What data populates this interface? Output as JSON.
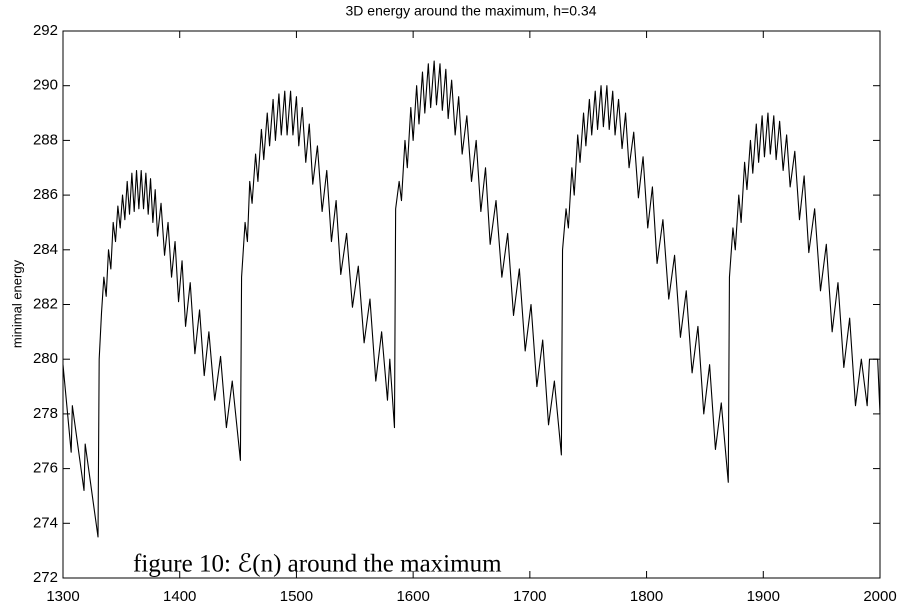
{
  "chart_data": {
    "type": "line",
    "title": "3D energy around the maximum, h=0.34",
    "ylabel": "minimal energy",
    "annotation": "figure 10: ℰ(n) around the maximum",
    "xlim": [
      1300,
      2000
    ],
    "xticks": [
      1300,
      1400,
      1500,
      1600,
      1700,
      1800,
      1900,
      2000
    ],
    "ylim": [
      272,
      292
    ],
    "yticks": [
      272,
      274,
      276,
      278,
      280,
      282,
      284,
      286,
      288,
      290,
      292
    ],
    "grid": false,
    "color": "#000000",
    "x": [
      1300,
      1307,
      1308,
      1318,
      1319,
      1330,
      1331,
      1333,
      1335,
      1337,
      1339,
      1341,
      1343,
      1345,
      1347,
      1349,
      1351,
      1353,
      1355,
      1357,
      1359,
      1361,
      1363,
      1365,
      1367,
      1369,
      1371,
      1373,
      1375,
      1377,
      1379,
      1381,
      1384,
      1387,
      1390,
      1393,
      1396,
      1399,
      1402,
      1405,
      1409,
      1413,
      1417,
      1421,
      1425,
      1430,
      1435,
      1440,
      1445,
      1452,
      1453,
      1456,
      1458,
      1460,
      1462,
      1465,
      1467,
      1470,
      1472,
      1475,
      1477,
      1480,
      1482,
      1485,
      1487,
      1490,
      1492,
      1495,
      1497,
      1500,
      1502,
      1505,
      1508,
      1511,
      1514,
      1518,
      1522,
      1526,
      1530,
      1534,
      1538,
      1543,
      1548,
      1553,
      1558,
      1563,
      1568,
      1573,
      1578,
      1580,
      1584,
      1585,
      1588,
      1590,
      1593,
      1595,
      1598,
      1600,
      1603,
      1605,
      1608,
      1610,
      1613,
      1615,
      1618,
      1620,
      1623,
      1625,
      1628,
      1630,
      1633,
      1636,
      1639,
      1642,
      1646,
      1650,
      1654,
      1658,
      1662,
      1666,
      1671,
      1676,
      1681,
      1686,
      1691,
      1696,
      1701,
      1706,
      1711,
      1716,
      1721,
      1727,
      1728,
      1731,
      1733,
      1736,
      1738,
      1741,
      1743,
      1746,
      1748,
      1751,
      1753,
      1756,
      1758,
      1761,
      1763,
      1766,
      1768,
      1771,
      1773,
      1776,
      1779,
      1782,
      1785,
      1789,
      1793,
      1797,
      1801,
      1805,
      1809,
      1814,
      1819,
      1824,
      1829,
      1834,
      1839,
      1844,
      1849,
      1854,
      1859,
      1864,
      1870,
      1871,
      1874,
      1876,
      1879,
      1881,
      1884,
      1886,
      1889,
      1891,
      1894,
      1896,
      1899,
      1901,
      1904,
      1906,
      1909,
      1911,
      1914,
      1917,
      1920,
      1923,
      1927,
      1931,
      1935,
      1939,
      1944,
      1949,
      1954,
      1959,
      1964,
      1969,
      1974,
      1979,
      1984,
      1989,
      1991,
      1998,
      2000
    ],
    "values": [
      279.8,
      276.6,
      278.3,
      275.2,
      276.9,
      273.5,
      280.0,
      281.7,
      283.0,
      282.3,
      284.0,
      283.3,
      285.0,
      284.3,
      285.6,
      284.8,
      286.0,
      285.1,
      286.5,
      285.3,
      286.8,
      285.4,
      286.9,
      285.5,
      286.9,
      285.5,
      286.8,
      285.3,
      286.6,
      285.0,
      286.2,
      284.5,
      285.7,
      283.8,
      285.0,
      283.0,
      284.3,
      282.1,
      283.6,
      281.2,
      282.8,
      280.2,
      281.8,
      279.4,
      281.0,
      278.5,
      280.1,
      277.5,
      279.2,
      276.3,
      283.0,
      285.0,
      284.3,
      286.5,
      285.7,
      287.5,
      286.5,
      288.4,
      287.3,
      289.0,
      287.8,
      289.5,
      288.0,
      289.7,
      288.2,
      289.8,
      288.2,
      289.8,
      288.2,
      289.6,
      287.8,
      289.2,
      287.2,
      288.6,
      286.4,
      287.8,
      285.4,
      286.9,
      284.3,
      285.8,
      283.1,
      284.6,
      281.9,
      283.4,
      280.6,
      282.2,
      279.2,
      281.0,
      278.5,
      280.0,
      277.5,
      285.5,
      286.5,
      285.8,
      288.0,
      287.0,
      289.2,
      288.0,
      290.0,
      288.6,
      290.5,
      289.0,
      290.8,
      289.2,
      290.9,
      289.3,
      290.8,
      289.1,
      290.6,
      288.8,
      290.2,
      288.2,
      289.6,
      287.5,
      288.9,
      286.5,
      288.0,
      285.4,
      287.0,
      284.2,
      285.8,
      283.0,
      284.6,
      281.6,
      283.3,
      280.3,
      282.0,
      279.0,
      280.7,
      277.6,
      279.2,
      276.5,
      284.0,
      285.5,
      284.8,
      287.0,
      286.0,
      288.2,
      287.2,
      289.0,
      287.8,
      289.5,
      288.2,
      289.8,
      288.4,
      290.0,
      288.5,
      290.0,
      288.4,
      289.8,
      288.2,
      289.5,
      287.7,
      289.0,
      287.0,
      288.3,
      285.9,
      287.4,
      284.8,
      286.3,
      283.5,
      285.1,
      282.2,
      283.8,
      280.8,
      282.5,
      279.5,
      281.2,
      278.0,
      279.8,
      276.7,
      278.4,
      275.5,
      283.0,
      284.8,
      284.0,
      286.0,
      285.0,
      287.2,
      286.2,
      288.0,
      286.8,
      288.6,
      287.2,
      288.9,
      287.4,
      289.0,
      287.5,
      288.9,
      287.3,
      288.7,
      286.9,
      288.2,
      286.3,
      287.6,
      285.1,
      286.7,
      283.9,
      285.5,
      282.5,
      284.2,
      281.0,
      282.8,
      279.7,
      281.5,
      278.3,
      280.0,
      278.3,
      280.0,
      280.0,
      278.0
    ]
  }
}
